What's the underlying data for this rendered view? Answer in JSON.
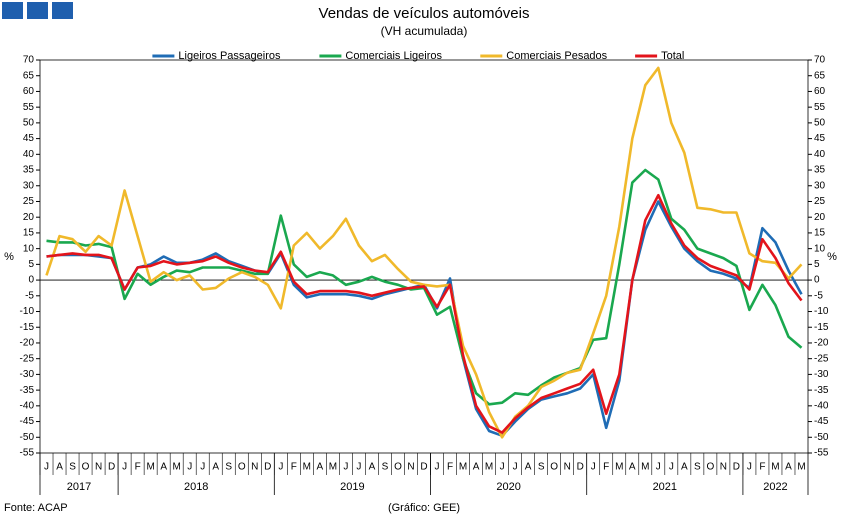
{
  "chart_data": {
    "type": "line",
    "title": "Vendas de veículos automóveis",
    "subtitle": "(VH acumulada)",
    "ylabel": "%",
    "y2label": "%",
    "source": "Fonte: ACAP",
    "credit": "(Gráfico: GEE)",
    "categories": [
      "J",
      "A",
      "S",
      "O",
      "N",
      "D",
      "J",
      "F",
      "M",
      "A",
      "M",
      "J",
      "J",
      "A",
      "S",
      "O",
      "N",
      "D",
      "J",
      "F",
      "M",
      "A",
      "M",
      "J",
      "J",
      "A",
      "S",
      "O",
      "N",
      "D",
      "J",
      "F",
      "M",
      "A",
      "M",
      "J",
      "J",
      "A",
      "S",
      "O",
      "N",
      "D",
      "J",
      "F",
      "M",
      "A",
      "M",
      "J",
      "J",
      "A",
      "S",
      "O",
      "N",
      "D",
      "J",
      "F",
      "M",
      "A",
      "M"
    ],
    "years": [
      "2017",
      "2018",
      "2019",
      "2020",
      "2021",
      "2022"
    ],
    "ylim": [
      -55,
      70
    ],
    "yticks": [
      -55,
      -50,
      -45,
      -40,
      -35,
      -30,
      -25,
      -20,
      -15,
      -10,
      -5,
      0,
      5,
      10,
      15,
      20,
      25,
      30,
      35,
      40,
      45,
      50,
      55,
      60,
      65,
      70
    ],
    "y2lim": [
      -55,
      70
    ],
    "y2ticks": [
      -55,
      -50,
      -45,
      -40,
      -35,
      -30,
      -25,
      -20,
      -15,
      -10,
      -5,
      0,
      5,
      10,
      15,
      20,
      25,
      30,
      35,
      40,
      45,
      50,
      55,
      60,
      65,
      70
    ],
    "legend": "top",
    "series": [
      {
        "name": "Ligeiros Passageiros",
        "color": "#1f6cb5",
        "values": [
          7.5,
          8,
          8,
          8,
          7.5,
          7,
          -3,
          4,
          5,
          7.5,
          5.5,
          5.5,
          6.5,
          8.5,
          6,
          4.5,
          3,
          2,
          8.5,
          -1.5,
          -5.5,
          -4.5,
          -4.5,
          -4.5,
          -5,
          -6,
          -4.5,
          -3.5,
          -2.5,
          -1.5,
          -9,
          0.5,
          -25,
          -41,
          -48,
          -49.5,
          -45,
          -41,
          -38,
          -37,
          -36,
          -34.5,
          -30,
          -47,
          -32,
          0,
          16,
          25,
          17,
          10,
          6,
          3,
          2,
          0.5,
          -2.5,
          16.5,
          12,
          3,
          -4.5
        ]
      },
      {
        "name": "Comerciais Ligeiros",
        "color": "#1aa84f",
        "values": [
          12.5,
          12,
          12,
          11,
          11.5,
          10.5,
          -6,
          2,
          -1.5,
          1,
          3,
          2.5,
          4,
          4,
          4,
          3,
          2,
          2,
          20.5,
          5,
          1,
          2.5,
          1.5,
          -1.5,
          -0.5,
          1,
          -0.5,
          -1.5,
          -3,
          -2.5,
          -11,
          -8.5,
          -25,
          -36,
          -39.5,
          -39,
          -36,
          -36.5,
          -33.5,
          -31,
          -29.5,
          -28,
          -19,
          -18.5,
          5,
          31,
          35,
          32,
          19.5,
          16,
          10,
          8.5,
          7,
          4.5,
          -9.5,
          -1.5,
          -8,
          -18,
          -21.5
        ]
      },
      {
        "name": "Comerciais Pesados",
        "color": "#f0b92b",
        "values": [
          1.5,
          14,
          13,
          9,
          14,
          11,
          28.5,
          14,
          -0.5,
          2.5,
          0,
          1.5,
          -3,
          -2.5,
          0.5,
          2.5,
          1,
          -1.5,
          -9,
          11,
          15,
          10,
          14,
          19.5,
          11,
          6,
          8,
          3.5,
          -0.5,
          -1.5,
          -2,
          -1.5,
          -21,
          -30,
          -42,
          -50,
          -43.5,
          -40,
          -34,
          -32,
          -29.5,
          -28.5,
          -17,
          -5,
          17,
          45,
          62,
          67.5,
          50,
          40.5,
          23,
          22.5,
          21.5,
          21.5,
          8.5,
          6,
          5.5,
          0.5,
          5
        ]
      },
      {
        "name": "Total",
        "color": "#e3141b",
        "values": [
          7.5,
          8,
          8.5,
          8,
          8,
          7,
          -3,
          4,
          4.5,
          6,
          5,
          5.5,
          6,
          7.5,
          5.5,
          4,
          3,
          2.5,
          9,
          -0.5,
          -4.5,
          -3.5,
          -3.5,
          -3.5,
          -4,
          -5,
          -4,
          -3,
          -2.5,
          -2,
          -8.5,
          -1.5,
          -24,
          -40,
          -46.5,
          -48.5,
          -44,
          -40.5,
          -37.5,
          -36,
          -34.5,
          -33,
          -28.5,
          -42.5,
          -30,
          0,
          19,
          27,
          18,
          11,
          7,
          4.5,
          3,
          1.5,
          -3,
          13,
          7,
          -1,
          -6.5
        ]
      }
    ]
  }
}
